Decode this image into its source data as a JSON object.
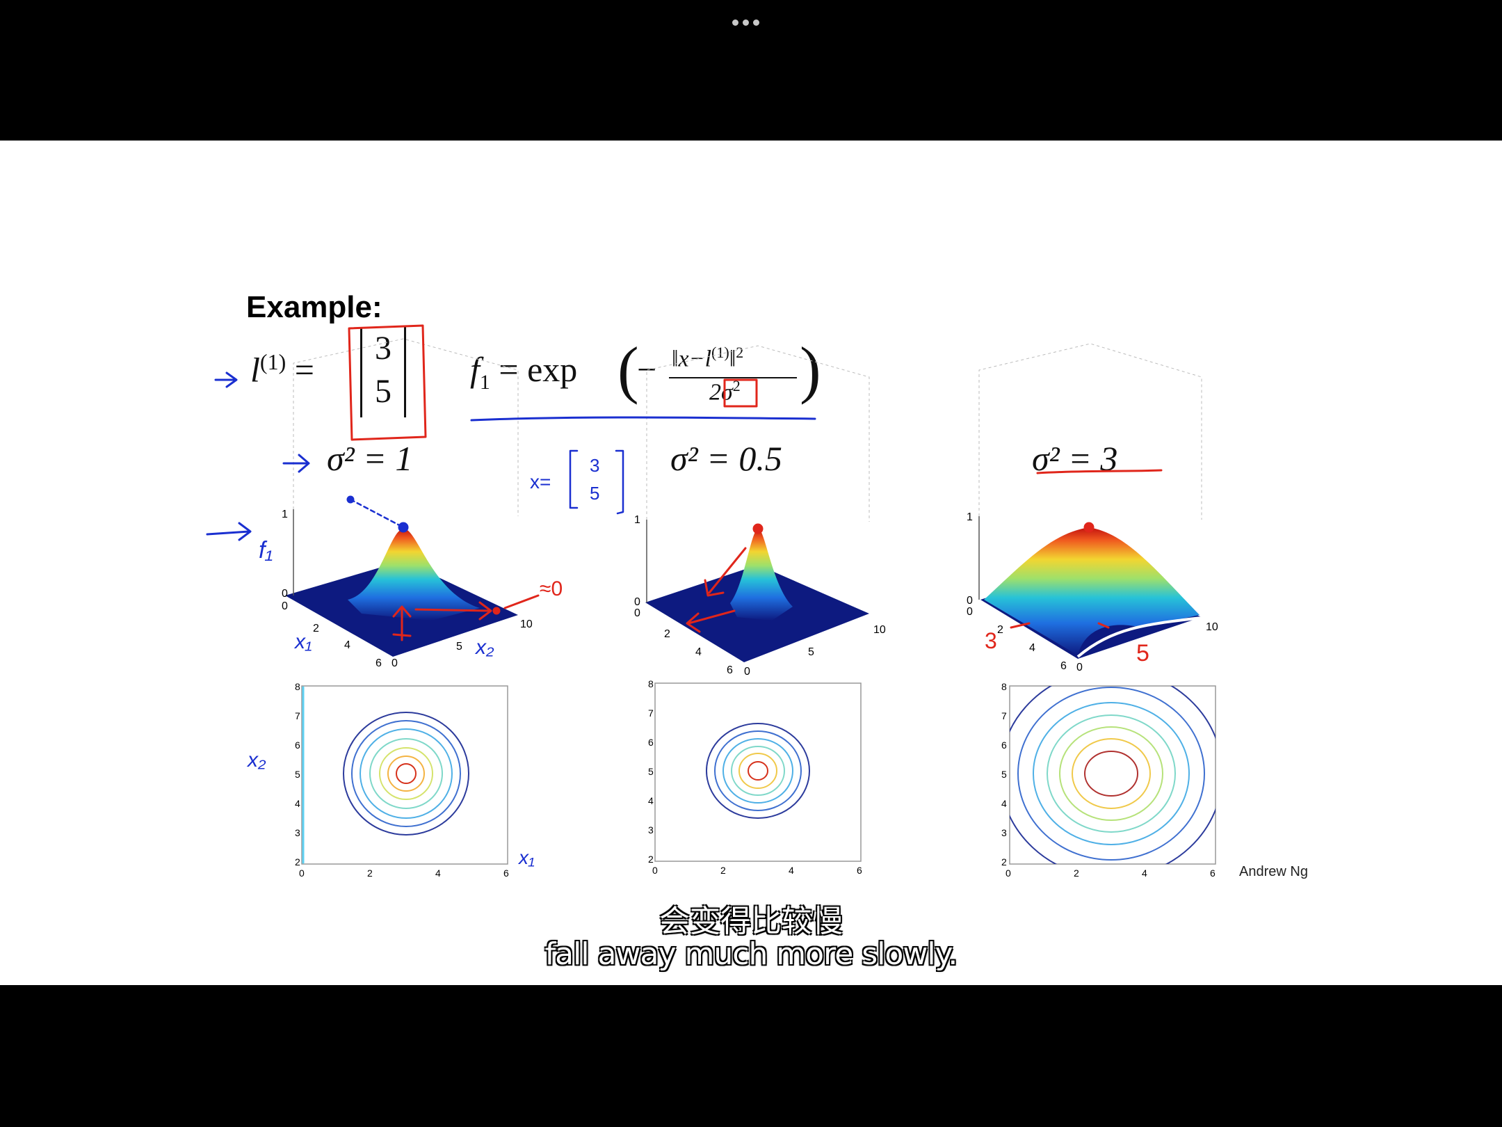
{
  "window": {
    "menu_icon": "more-dots-icon"
  },
  "slide": {
    "heading": "Example:",
    "landmark_lhs": "l",
    "landmark_sup": "(1)",
    "landmark_vec": [
      "3",
      "5"
    ],
    "feature_lhs": "f",
    "feature_sub": "1",
    "feature_eq": "= exp",
    "numerator": "‖x−l",
    "numerator_sup": "(1)",
    "numerator_tail": "‖",
    "denominator": "2σ",
    "panels": [
      {
        "sigma_label": "σ² = 1"
      },
      {
        "sigma_label": "σ² = 0.5"
      },
      {
        "sigma_label": "σ² = 3"
      }
    ],
    "axis_ticks": {
      "z": [
        "0",
        "1"
      ],
      "x1": [
        "0",
        "2",
        "4",
        "6"
      ],
      "x2": [
        "0",
        "5",
        "10"
      ],
      "contour_x": [
        "0",
        "2",
        "4",
        "6"
      ],
      "contour_y": [
        "2",
        "3",
        "4",
        "5",
        "6",
        "7",
        "8"
      ]
    },
    "annotations": {
      "f1": "f₁",
      "approx_zero": "≈0",
      "x_vec": "x=",
      "x_vec_vals": [
        "3",
        "5"
      ],
      "x1": "x₁",
      "x2": "x₂",
      "three": "3",
      "five": "5"
    },
    "author": "Andrew Ng"
  },
  "subtitles": {
    "chinese": "会变得比较慢",
    "english": "fall away much more slowly."
  },
  "colors": {
    "pen_blue": "#1a2fd0",
    "pen_red": "#e0261b"
  }
}
